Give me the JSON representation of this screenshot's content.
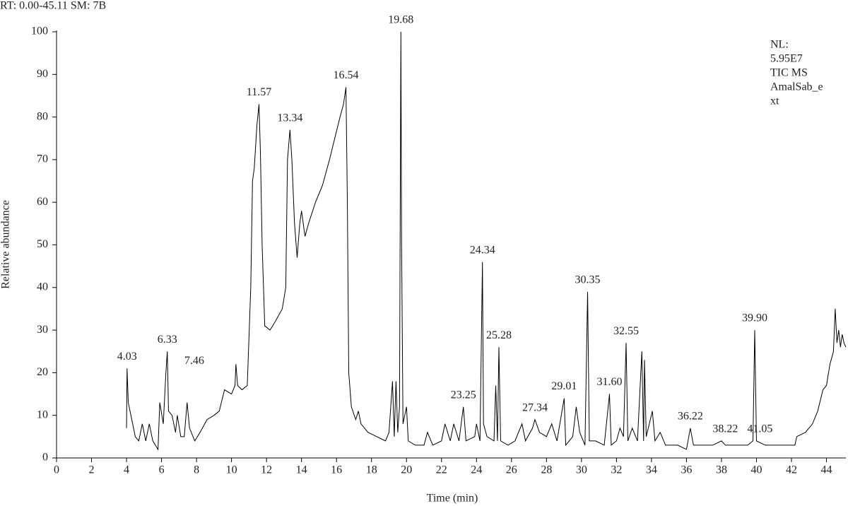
{
  "chart_data": {
    "type": "line",
    "header": "RT: 0.00-45.11   SM: 7B",
    "note": [
      "NL:",
      "5.95E7",
      "TIC MS",
      "AmalSab_e",
      "xt"
    ],
    "xlabel": "Time (min)",
    "ylabel": "Relative abundance",
    "color": "#000000",
    "xlim": [
      0,
      45.11
    ],
    "ylim": [
      0,
      100
    ],
    "xticks": [
      0,
      2,
      4,
      6,
      8,
      10,
      12,
      14,
      16,
      18,
      20,
      22,
      24,
      26,
      28,
      30,
      32,
      34,
      36,
      38,
      40,
      42,
      44
    ],
    "yticks": [
      0,
      10,
      20,
      30,
      40,
      50,
      60,
      70,
      80,
      90,
      100
    ],
    "x": [
      4.0,
      4.03,
      4.1,
      4.3,
      4.5,
      4.7,
      4.9,
      5.1,
      5.3,
      5.5,
      5.8,
      5.9,
      6.1,
      6.25,
      6.33,
      6.4,
      6.6,
      6.8,
      6.9,
      7.1,
      7.3,
      7.46,
      7.6,
      7.9,
      8.2,
      8.6,
      9.0,
      9.3,
      9.6,
      10.0,
      10.2,
      10.25,
      10.35,
      10.6,
      10.9,
      11.1,
      11.2,
      11.3,
      11.45,
      11.57,
      11.65,
      11.75,
      11.9,
      12.2,
      12.5,
      12.9,
      13.1,
      13.2,
      13.34,
      13.45,
      13.6,
      13.75,
      13.9,
      14.0,
      14.2,
      14.4,
      14.8,
      15.2,
      15.6,
      15.9,
      16.2,
      16.4,
      16.54,
      16.62,
      16.7,
      16.85,
      17.1,
      17.25,
      17.4,
      17.8,
      18.3,
      18.8,
      19.0,
      19.2,
      19.3,
      19.4,
      19.5,
      19.6,
      19.68,
      19.72,
      19.8,
      20.0,
      20.1,
      20.5,
      21.0,
      21.2,
      21.5,
      22.0,
      22.2,
      22.5,
      22.7,
      23.0,
      23.25,
      23.4,
      23.9,
      24.0,
      24.2,
      24.34,
      24.4,
      24.6,
      25.0,
      25.1,
      25.2,
      25.28,
      25.38,
      25.8,
      26.2,
      26.6,
      26.8,
      27.2,
      27.34,
      27.6,
      28.0,
      28.3,
      28.6,
      29.01,
      29.1,
      29.5,
      29.7,
      29.9,
      30.2,
      30.35,
      30.45,
      30.8,
      31.3,
      31.6,
      31.7,
      32.0,
      32.2,
      32.4,
      32.55,
      32.65,
      32.9,
      33.2,
      33.45,
      33.55,
      33.6,
      33.7,
      34.05,
      34.2,
      34.5,
      34.8,
      35.5,
      36.0,
      36.22,
      36.4,
      37.0,
      37.5,
      38.0,
      38.22,
      38.6,
      39.0,
      39.5,
      39.8,
      39.9,
      40.0,
      40.5,
      41.05,
      41.5,
      42.2,
      42.3,
      42.8,
      43.2,
      43.5,
      43.8,
      44.0,
      44.2,
      44.4,
      44.5,
      44.6,
      44.7,
      44.8,
      44.9,
      45.0,
      45.11
    ],
    "values": [
      7,
      21,
      13,
      9,
      5,
      4,
      8,
      4,
      8,
      4,
      2,
      13,
      8,
      20,
      25,
      11,
      10,
      6,
      10,
      5,
      5,
      13,
      7,
      4,
      6,
      9,
      10,
      11,
      16,
      15,
      17,
      22,
      17,
      16,
      17,
      40,
      65,
      68,
      78,
      83,
      72,
      50,
      31,
      30,
      32,
      35,
      40,
      70,
      77,
      70,
      55,
      47,
      55,
      58,
      52,
      55,
      60,
      64,
      70,
      75,
      80,
      83,
      87,
      60,
      20,
      12,
      9,
      11,
      8,
      6,
      5,
      4,
      6,
      18,
      5,
      18,
      6,
      12,
      100,
      50,
      8,
      12,
      4,
      3,
      3,
      6,
      3,
      4,
      8,
      4,
      8,
      4,
      12,
      4,
      5,
      8,
      4,
      46,
      8,
      5,
      4,
      17,
      4,
      26,
      4,
      3,
      4,
      8,
      4,
      7,
      9,
      6,
      5,
      8,
      4,
      14,
      3,
      5,
      12,
      6,
      3,
      39,
      4,
      4,
      3,
      15,
      3,
      4,
      7,
      5,
      27,
      4,
      7,
      4,
      25,
      4,
      23,
      5,
      11,
      4,
      6,
      3,
      3,
      2,
      7,
      3,
      3,
      3,
      4,
      3,
      3,
      3,
      3,
      4,
      30,
      4,
      3,
      3,
      3,
      3,
      5,
      6,
      8,
      11,
      16,
      17,
      22,
      25,
      35,
      27,
      30,
      26,
      29,
      27,
      26
    ],
    "annotations": [
      {
        "text": "4.03",
        "x": 4.03,
        "y": 22
      },
      {
        "text": "6.33",
        "x": 6.33,
        "y": 26
      },
      {
        "text": "7.46",
        "x": 7.87,
        "y": 21
      },
      {
        "text": "11.57",
        "x": 11.57,
        "y": 84
      },
      {
        "text": "13.34",
        "x": 13.34,
        "y": 78
      },
      {
        "text": "16.54",
        "x": 16.54,
        "y": 88
      },
      {
        "text": "19.68",
        "x": 19.68,
        "y": 101
      },
      {
        "text": "23.25",
        "x": 23.25,
        "y": 13
      },
      {
        "text": "24.34",
        "x": 24.34,
        "y": 47
      },
      {
        "text": "25.28",
        "x": 25.28,
        "y": 27
      },
      {
        "text": "27.34",
        "x": 27.34,
        "y": 10
      },
      {
        "text": "29.01",
        "x": 29.01,
        "y": 15
      },
      {
        "text": "30.35",
        "x": 30.35,
        "y": 40
      },
      {
        "text": "31.60",
        "x": 31.6,
        "y": 16
      },
      {
        "text": "32.55",
        "x": 32.55,
        "y": 28
      },
      {
        "text": "36.22",
        "x": 36.22,
        "y": 8
      },
      {
        "text": "38.22",
        "x": 38.22,
        "y": 5
      },
      {
        "text": "39.90",
        "x": 39.9,
        "y": 31
      },
      {
        "text": "41.05",
        "x": 40.2,
        "y": 5
      }
    ]
  }
}
